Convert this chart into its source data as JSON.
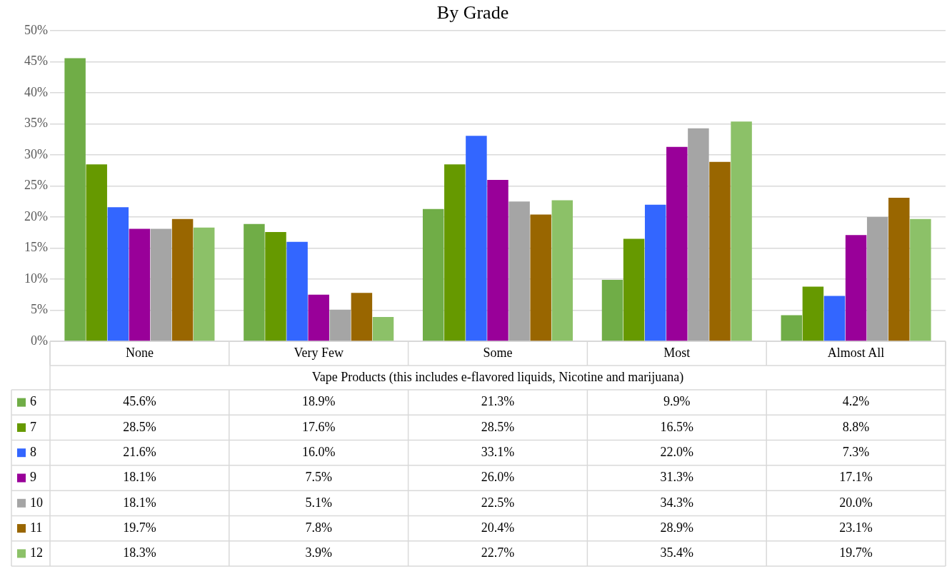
{
  "chart_data": {
    "type": "bar",
    "title": "By Grade",
    "xlabel": "Vape Products (this includes e-flavored liquids, Nicotine and marijuana)",
    "categories": [
      "None",
      "Very Few",
      "Some",
      "Most",
      "Almost All"
    ],
    "series": [
      {
        "name": "6",
        "color": "#70ad47",
        "values": [
          45.6,
          18.9,
          21.3,
          9.9,
          4.2
        ],
        "value_labels": [
          "45.6%",
          "18.9%",
          "21.3%",
          "9.9%",
          "4.2%"
        ]
      },
      {
        "name": "7",
        "color": "#669900",
        "values": [
          28.5,
          17.6,
          28.5,
          16.5,
          8.8
        ],
        "value_labels": [
          "28.5%",
          "17.6%",
          "28.5%",
          "16.5%",
          "8.8%"
        ]
      },
      {
        "name": "8",
        "color": "#3366ff",
        "values": [
          21.6,
          16.0,
          33.1,
          22.0,
          7.3
        ],
        "value_labels": [
          "21.6%",
          "16.0%",
          "33.1%",
          "22.0%",
          "7.3%"
        ]
      },
      {
        "name": "9",
        "color": "#990099",
        "values": [
          18.1,
          7.5,
          26.0,
          31.3,
          17.1
        ],
        "value_labels": [
          "18.1%",
          "7.5%",
          "26.0%",
          "31.3%",
          "17.1%"
        ]
      },
      {
        "name": "10",
        "color": "#a5a5a5",
        "values": [
          18.1,
          5.1,
          22.5,
          34.3,
          20.0
        ],
        "value_labels": [
          "18.1%",
          "5.1%",
          "22.5%",
          "34.3%",
          "20.0%"
        ]
      },
      {
        "name": "11",
        "color": "#996600",
        "values": [
          19.7,
          7.8,
          20.4,
          28.9,
          23.1
        ],
        "value_labels": [
          "19.7%",
          "7.8%",
          "20.4%",
          "28.9%",
          "23.1%"
        ]
      },
      {
        "name": "12",
        "color": "#8cc168",
        "values": [
          18.3,
          3.9,
          22.7,
          35.4,
          19.7
        ],
        "value_labels": [
          "18.3%",
          "3.9%",
          "22.7%",
          "35.4%",
          "19.7%"
        ]
      }
    ],
    "ylim": [
      0,
      50
    ],
    "yticks": [
      {
        "value": 0,
        "label": "0%"
      },
      {
        "value": 5,
        "label": "5%"
      },
      {
        "value": 10,
        "label": "10%"
      },
      {
        "value": 15,
        "label": "15%"
      },
      {
        "value": 20,
        "label": "20%"
      },
      {
        "value": 25,
        "label": "25%"
      },
      {
        "value": 30,
        "label": "30%"
      },
      {
        "value": 35,
        "label": "35%"
      },
      {
        "value": 40,
        "label": "40%"
      },
      {
        "value": 45,
        "label": "45%"
      },
      {
        "value": 50,
        "label": "50%"
      }
    ],
    "grid": "y",
    "legend": "bottom left"
  }
}
